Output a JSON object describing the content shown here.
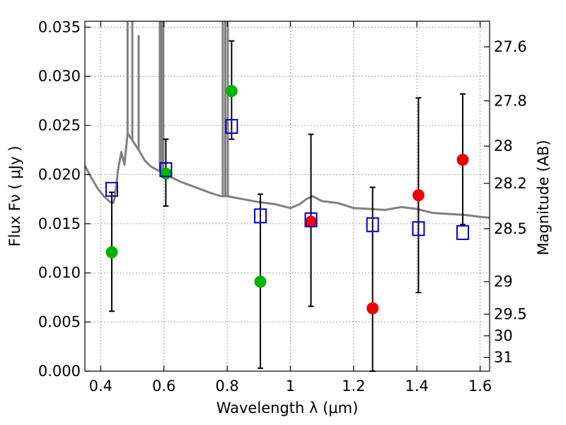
{
  "chart_data": {
    "type": "scatter",
    "xlabel": "Wavelength  λ (μm)",
    "ylabel": "Flux  Fν  ( μJy )",
    "ylabel_right": "Magnitude (AB)",
    "xlim": [
      0.35,
      1.63
    ],
    "ylim": [
      0.0,
      0.0356
    ],
    "x_ticks": [
      0.4,
      0.6,
      0.8,
      1.0,
      1.2,
      1.4,
      1.6
    ],
    "x_tick_labels": [
      "0.4",
      "0.6",
      "0.8",
      "1",
      "1.2",
      "1.4",
      "1.6"
    ],
    "y_ticks": [
      0.0,
      0.005,
      0.01,
      0.015,
      0.02,
      0.025,
      0.03,
      0.035
    ],
    "y_tick_labels": [
      "0.000",
      "0.005",
      "0.010",
      "0.015",
      "0.020",
      "0.025",
      "0.030",
      "0.035"
    ],
    "right_ticks": [
      {
        "label": "27.6",
        "flux": 0.033
      },
      {
        "label": "27.8",
        "flux": 0.0275
      },
      {
        "label": "28",
        "flux": 0.0229
      },
      {
        "label": "28.2",
        "flux": 0.0191
      },
      {
        "label": "28.5",
        "flux": 0.0145
      },
      {
        "label": "29",
        "flux": 0.0091
      },
      {
        "label": "29.5",
        "flux": 0.0058
      },
      {
        "label": "30",
        "flux": 0.0036
      },
      {
        "label": "31",
        "flux": 0.0014
      }
    ],
    "grid": true,
    "series": [
      {
        "marker": "circle",
        "color": "#00b300",
        "points": [
          {
            "x": 0.435,
            "y": 0.0121,
            "err_lo": 0.0061,
            "err_hi": 0.0182
          },
          {
            "x": 0.606,
            "y": 0.0201,
            "err_lo": 0.0168,
            "err_hi": 0.0236
          },
          {
            "x": 0.814,
            "y": 0.0285,
            "err_lo": 0.0236,
            "err_hi": 0.0336
          },
          {
            "x": 0.905,
            "y": 0.0091,
            "err_lo": 0.0003,
            "err_hi": 0.018
          }
        ]
      },
      {
        "marker": "circle",
        "color": "#ee0000",
        "points": [
          {
            "x": 1.065,
            "y": 0.0152,
            "err_lo": 0.0066,
            "err_hi": 0.0241
          },
          {
            "x": 1.26,
            "y": 0.0064,
            "err_lo": 0.0,
            "err_hi": 0.0187
          },
          {
            "x": 1.405,
            "y": 0.0179,
            "err_lo": 0.008,
            "err_hi": 0.0278
          },
          {
            "x": 1.545,
            "y": 0.0215,
            "err_lo": 0.0149,
            "err_hi": 0.0282
          }
        ]
      },
      {
        "marker": "open-square",
        "color": "#0000cc",
        "points": [
          {
            "x": 0.435,
            "y": 0.0185
          },
          {
            "x": 0.606,
            "y": 0.0205
          },
          {
            "x": 0.814,
            "y": 0.0249
          },
          {
            "x": 0.905,
            "y": 0.0158
          },
          {
            "x": 1.065,
            "y": 0.0154
          },
          {
            "x": 1.26,
            "y": 0.0149
          },
          {
            "x": 1.405,
            "y": 0.0145
          },
          {
            "x": 1.545,
            "y": 0.0141
          }
        ]
      }
    ],
    "model_spectrum": {
      "color": "#808080",
      "x": [
        0.35,
        0.37,
        0.39,
        0.41,
        0.43,
        0.44,
        0.445,
        0.455,
        0.465,
        0.475,
        0.485,
        0.5,
        0.52,
        0.54,
        0.56,
        0.6,
        0.65,
        0.7,
        0.75,
        0.78,
        0.8,
        0.85,
        0.9,
        0.95,
        1.0,
        1.03,
        1.05,
        1.07,
        1.1,
        1.15,
        1.2,
        1.25,
        1.3,
        1.35,
        1.4,
        1.45,
        1.5,
        1.55,
        1.6,
        1.63
      ],
      "y": [
        0.0209,
        0.0197,
        0.0186,
        0.0178,
        0.0172,
        0.0171,
        0.0178,
        0.0205,
        0.0223,
        0.021,
        0.0242,
        0.0235,
        0.0225,
        0.0214,
        0.0208,
        0.0201,
        0.0193,
        0.0187,
        0.0181,
        0.0178,
        0.0178,
        0.0175,
        0.0172,
        0.017,
        0.0166,
        0.017,
        0.0175,
        0.0178,
        0.0173,
        0.0171,
        0.0166,
        0.0165,
        0.0164,
        0.0167,
        0.0165,
        0.0161,
        0.016,
        0.0159,
        0.0157,
        0.0156
      ]
    },
    "emission_lines": [
      {
        "x": 0.485,
        "top": 0.0356
      },
      {
        "x": 0.5,
        "top": 0.0356
      },
      {
        "x": 0.52,
        "top": 0.0342
      },
      {
        "x": 0.587,
        "top": 0.0356
      },
      {
        "x": 0.592,
        "top": 0.0356
      },
      {
        "x": 0.598,
        "top": 0.0356
      },
      {
        "x": 0.786,
        "top": 0.0356
      },
      {
        "x": 0.794,
        "top": 0.0356
      },
      {
        "x": 0.802,
        "top": 0.0356
      }
    ]
  }
}
